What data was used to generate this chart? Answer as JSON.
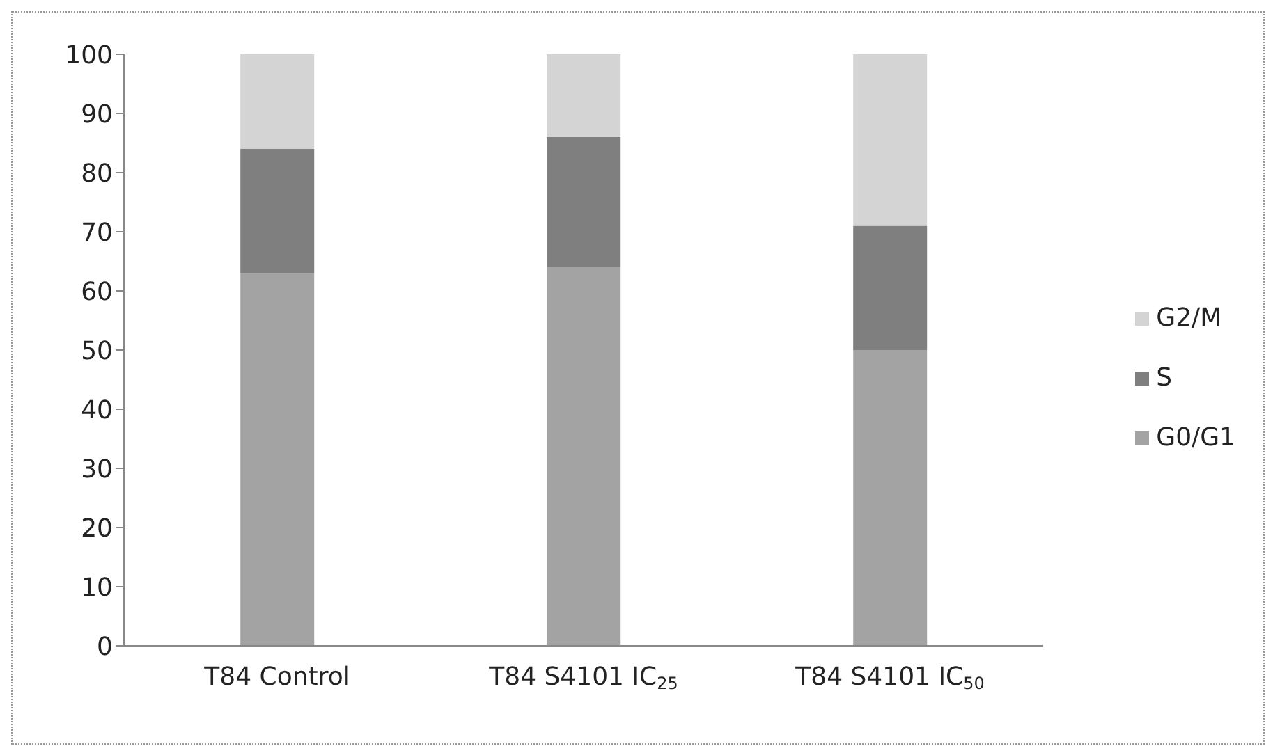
{
  "chart_data": {
    "type": "bar",
    "stacked": true,
    "categories": [
      "T84 Control",
      "T84 S4101 IC$_{25}$",
      "T84 S4101 IC$_{50}$"
    ],
    "series": [
      {
        "name": "G0/G1",
        "color": "#a3a3a3",
        "values": [
          63,
          64,
          50
        ]
      },
      {
        "name": "S",
        "color": "#7f7f7f",
        "values": [
          21,
          22,
          21
        ]
      },
      {
        "name": "G2/M",
        "color": "#d4d4d4",
        "values": [
          16,
          14,
          29
        ]
      }
    ],
    "ylim": [
      0,
      100
    ],
    "yticks": [
      0,
      10,
      20,
      30,
      40,
      50,
      60,
      70,
      80,
      90,
      100
    ],
    "grid": false,
    "legend": "right"
  }
}
